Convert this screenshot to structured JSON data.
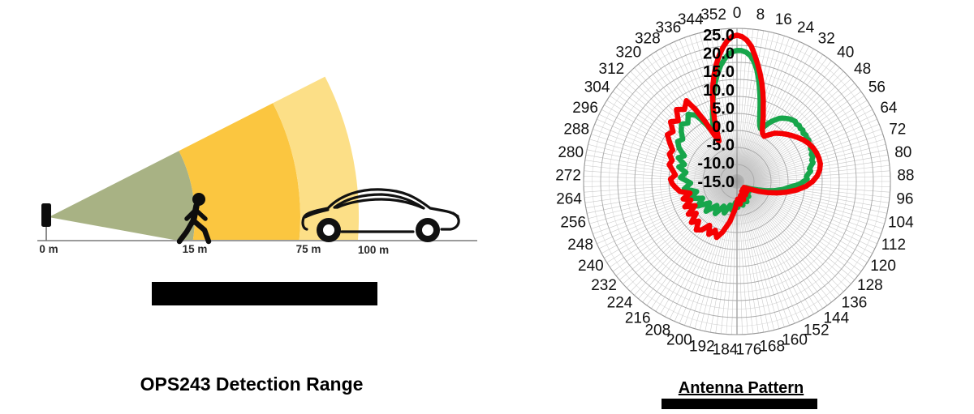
{
  "page": {
    "background": "#ffffff"
  },
  "left_figure": {
    "title": "OPS243 Detection Range",
    "distance_labels": [
      "0 m",
      "15 m",
      "75 m",
      "100 m"
    ],
    "zone_colors": [
      "#a8b284",
      "#fbc640",
      "#fcdf87"
    ],
    "ground_color": "#9b9b9b",
    "silhouette_color": "#0d0d0d"
  },
  "right_figure": {
    "title": "Antenna Pattern",
    "chart_data": {
      "type": "polar-line",
      "title": "Antenna Pattern",
      "angle_unit": "degrees",
      "angle_labels": [
        0,
        8,
        16,
        24,
        32,
        40,
        48,
        56,
        64,
        72,
        80,
        88,
        96,
        104,
        112,
        120,
        128,
        136,
        144,
        152,
        160,
        168,
        176,
        184,
        192,
        200,
        208,
        216,
        224,
        232,
        240,
        248,
        256,
        264,
        272,
        280,
        288,
        296,
        304,
        312,
        320,
        328,
        336,
        344,
        352
      ],
      "grid": {
        "angle_step_deg": 2,
        "minor_ring_step_db": 2.5,
        "major_ring_step_db": 5,
        "grid_on": true
      },
      "r_axis": {
        "center_value": -20,
        "max": 25,
        "ticks": [
          25,
          20,
          15,
          10,
          5,
          0,
          -5,
          -10,
          -15
        ],
        "tick_labels": [
          "25.0",
          "20.0",
          "15.0",
          "10.0",
          "5.0",
          "0.0",
          "-5.0",
          "-10.0",
          "-15.0"
        ]
      },
      "series": [
        {
          "name": "green-pattern",
          "color": "#17a64b",
          "points": [
            [
              0,
              18.5
            ],
            [
              2,
              18.5
            ],
            [
              4,
              18.1
            ],
            [
              6,
              17.2
            ],
            [
              8,
              15.6
            ],
            [
              10,
              13.4
            ],
            [
              12,
              10.6
            ],
            [
              14,
              7.6
            ],
            [
              16,
              4.6
            ],
            [
              18,
              1.8
            ],
            [
              20,
              -0.6
            ],
            [
              22,
              -2.2
            ],
            [
              24,
              -3
            ],
            [
              26,
              -2.2
            ],
            [
              28,
              -0.8
            ],
            [
              30,
              0.4
            ],
            [
              32,
              1.4
            ],
            [
              34,
              2.4
            ],
            [
              36,
              3
            ],
            [
              38,
              3.5
            ],
            [
              40,
              4
            ],
            [
              42,
              4.3
            ],
            [
              44,
              4.6
            ],
            [
              46,
              4.2
            ],
            [
              48,
              4.6
            ],
            [
              50,
              4.2
            ],
            [
              52,
              4.5
            ],
            [
              54,
              4
            ],
            [
              56,
              4.4
            ],
            [
              58,
              4
            ],
            [
              60,
              4.3
            ],
            [
              62,
              3.8
            ],
            [
              64,
              4.1
            ],
            [
              66,
              3.6
            ],
            [
              68,
              3.9
            ],
            [
              70,
              3.2
            ],
            [
              72,
              3.4
            ],
            [
              74,
              2.8
            ],
            [
              76,
              3
            ],
            [
              78,
              2.2
            ],
            [
              80,
              1.6
            ],
            [
              82,
              1.8
            ],
            [
              84,
              1
            ],
            [
              86,
              0.4
            ],
            [
              88,
              0.6
            ],
            [
              90,
              -0.5
            ],
            [
              92,
              -1.4
            ],
            [
              94,
              -2.8
            ],
            [
              96,
              -4.4
            ],
            [
              100,
              -6.4
            ],
            [
              104,
              -8.8
            ],
            [
              108,
              -11.2
            ],
            [
              112,
              -13.4
            ],
            [
              118,
              -15.4
            ],
            [
              124,
              -16.8
            ],
            [
              130,
              -15.4
            ],
            [
              136,
              -16.8
            ],
            [
              142,
              -14.4
            ],
            [
              148,
              -16.2
            ],
            [
              154,
              -13.4
            ],
            [
              160,
              -15.2
            ],
            [
              166,
              -12.8
            ],
            [
              172,
              -14.4
            ],
            [
              178,
              -12.4
            ],
            [
              184,
              -13.8
            ],
            [
              190,
              -11.4
            ],
            [
              196,
              -12.8
            ],
            [
              202,
              -10
            ],
            [
              208,
              -11.8
            ],
            [
              214,
              -8.6
            ],
            [
              220,
              -10.8
            ],
            [
              226,
              -7.4
            ],
            [
              232,
              -9.8
            ],
            [
              238,
              -6.4
            ],
            [
              244,
              -8.8
            ],
            [
              250,
              -5.4
            ],
            [
              256,
              -7.8
            ],
            [
              262,
              -4.4
            ],
            [
              268,
              -6.4
            ],
            [
              274,
              -3.4
            ],
            [
              280,
              -4.8
            ],
            [
              284,
              -2.4
            ],
            [
              288,
              -3.8
            ],
            [
              292,
              -1.4
            ],
            [
              296,
              -2.8
            ],
            [
              300,
              -0.4
            ],
            [
              304,
              1
            ],
            [
              308,
              0.2
            ],
            [
              312,
              2
            ],
            [
              316,
              3.4
            ],
            [
              320,
              2.4
            ],
            [
              324,
              4.4
            ],
            [
              328,
              3
            ],
            [
              330,
              1
            ],
            [
              332,
              -1.4
            ],
            [
              334,
              -3.8
            ],
            [
              336,
              -3
            ],
            [
              338,
              -1
            ],
            [
              340,
              1
            ],
            [
              342,
              3
            ],
            [
              344,
              5.4
            ],
            [
              346,
              7.8
            ],
            [
              348,
              10.2
            ],
            [
              350,
              12.4
            ],
            [
              352,
              14.4
            ],
            [
              354,
              16
            ],
            [
              356,
              17.4
            ],
            [
              358,
              18.2
            ]
          ]
        },
        {
          "name": "red-pattern",
          "color": "#f50002",
          "points": [
            [
              0,
              23
            ],
            [
              2,
              22.6
            ],
            [
              4,
              21.6
            ],
            [
              6,
              20
            ],
            [
              8,
              17.5
            ],
            [
              10,
              15
            ],
            [
              12,
              12.5
            ],
            [
              14,
              10
            ],
            [
              16,
              7.5
            ],
            [
              18,
              5
            ],
            [
              20,
              2.5
            ],
            [
              22,
              0.5
            ],
            [
              24,
              -1.5
            ],
            [
              26,
              -3
            ],
            [
              28,
              -4
            ],
            [
              31,
              -4.5
            ],
            [
              34,
              -3.5
            ],
            [
              38,
              -2
            ],
            [
              42,
              -1
            ],
            [
              46,
              0
            ],
            [
              50,
              1
            ],
            [
              54,
              2
            ],
            [
              58,
              3
            ],
            [
              62,
              3.8
            ],
            [
              66,
              4.4
            ],
            [
              70,
              4.8
            ],
            [
              74,
              5
            ],
            [
              78,
              5
            ],
            [
              82,
              4.5
            ],
            [
              86,
              3.6
            ],
            [
              90,
              2.2
            ],
            [
              94,
              0.3
            ],
            [
              98,
              -2.2
            ],
            [
              102,
              -5
            ],
            [
              106,
              -7.8
            ],
            [
              110,
              -10.5
            ],
            [
              114,
              -12.8
            ],
            [
              118,
              -14.8
            ],
            [
              124,
              -16.3
            ],
            [
              130,
              -17.3
            ],
            [
              136,
              -15.8
            ],
            [
              142,
              -17.2
            ],
            [
              148,
              -15.3
            ],
            [
              154,
              -16.8
            ],
            [
              160,
              -14.3
            ],
            [
              166,
              -15.8
            ],
            [
              172,
              -13.3
            ],
            [
              178,
              -14.8
            ],
            [
              184,
              -11.8
            ],
            [
              190,
              -8
            ],
            [
              196,
              -4.5
            ],
            [
              200,
              -2.5
            ],
            [
              204,
              -4.3
            ],
            [
              208,
              -2.4
            ],
            [
              212,
              -4.8
            ],
            [
              216,
              -2.4
            ],
            [
              220,
              -1.4
            ],
            [
              224,
              -3.8
            ],
            [
              228,
              -2
            ],
            [
              232,
              -4.8
            ],
            [
              236,
              -2.8
            ],
            [
              240,
              -5.8
            ],
            [
              244,
              -3
            ],
            [
              248,
              -5.4
            ],
            [
              252,
              -3.4
            ],
            [
              256,
              -5.8
            ],
            [
              260,
              -3
            ],
            [
              264,
              -2
            ],
            [
              268,
              -1
            ],
            [
              272,
              -0.5
            ],
            [
              276,
              -1.8
            ],
            [
              280,
              -0.8
            ],
            [
              284,
              0.5
            ],
            [
              288,
              0
            ],
            [
              292,
              1.4
            ],
            [
              296,
              1
            ],
            [
              300,
              2.8
            ],
            [
              304,
              4.6
            ],
            [
              308,
              3.8
            ],
            [
              312,
              6.2
            ],
            [
              316,
              4.8
            ],
            [
              320,
              7.6
            ],
            [
              324,
              6.2
            ],
            [
              328,
              8
            ],
            [
              330,
              4.6
            ],
            [
              332,
              0
            ],
            [
              334,
              -4.6
            ],
            [
              336,
              -7
            ],
            [
              338,
              -4.6
            ],
            [
              340,
              -0.8
            ],
            [
              342,
              2.6
            ],
            [
              344,
              6
            ],
            [
              346,
              9.2
            ],
            [
              348,
              12.2
            ],
            [
              350,
              15
            ],
            [
              352,
              17.4
            ],
            [
              354,
              19.6
            ],
            [
              356,
              21.4
            ],
            [
              358,
              22.6
            ]
          ]
        }
      ]
    }
  }
}
